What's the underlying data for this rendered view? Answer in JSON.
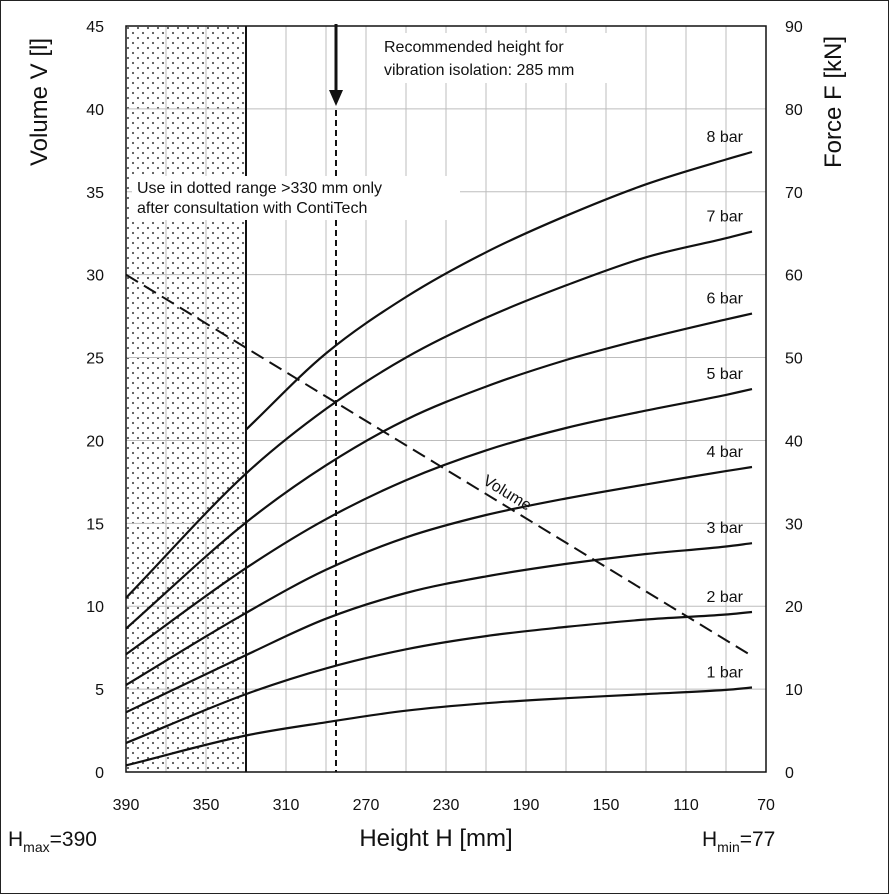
{
  "chart_data": {
    "type": "line",
    "xlabel": "Height H [mm]",
    "ylabel_left": "Volume V [l]",
    "ylabel_right": "Force F [kN]",
    "x_range": [
      390,
      70
    ],
    "x_reversed": true,
    "x_ticks": [
      "390",
      "350",
      "310",
      "270",
      "230",
      "190",
      "150",
      "110",
      "70"
    ],
    "y_left_range": [
      0,
      45
    ],
    "y_left_ticks": [
      "0",
      "5",
      "10",
      "15",
      "20",
      "25",
      "30",
      "35",
      "40",
      "45"
    ],
    "y_right_range": [
      0,
      90
    ],
    "y_right_ticks": [
      "0",
      "10",
      "20",
      "30",
      "40",
      "50",
      "60",
      "70",
      "80",
      "90"
    ],
    "grid": true,
    "h_max": {
      "prefix": "H",
      "sub": "max",
      "value": "=390"
    },
    "h_min": {
      "prefix": "H",
      "sub": "min",
      "value": "=77"
    },
    "dotted_range_mm": [
      390,
      330
    ],
    "recommended_height_mm": 285,
    "annotation_recommended": [
      "Recommended height for",
      "vibration isolation: 285 mm"
    ],
    "annotation_dotted": [
      "Use in dotted range >330 mm only",
      "after consultation with ContiTech"
    ],
    "series": [
      {
        "name": "1 bar",
        "axis": "force",
        "x": [
          390,
          330,
          290,
          250,
          210,
          170,
          130,
          90,
          77
        ],
        "y": [
          0.8,
          4.4,
          6.0,
          7.4,
          8.3,
          8.9,
          9.4,
          9.9,
          10.2
        ]
      },
      {
        "name": "2 bar",
        "axis": "force",
        "x": [
          390,
          330,
          290,
          250,
          210,
          170,
          130,
          90,
          77
        ],
        "y": [
          3.5,
          9.4,
          12.5,
          14.8,
          16.4,
          17.5,
          18.4,
          19.0,
          19.3
        ]
      },
      {
        "name": "3 bar",
        "axis": "force",
        "x": [
          390,
          330,
          290,
          250,
          210,
          170,
          130,
          90,
          77
        ],
        "y": [
          7.2,
          14.1,
          18.5,
          21.6,
          23.6,
          25.1,
          26.3,
          27.2,
          27.6
        ]
      },
      {
        "name": "4 bar",
        "axis": "force",
        "x": [
          390,
          330,
          290,
          250,
          210,
          170,
          130,
          90,
          77
        ],
        "y": [
          10.5,
          19.2,
          24.4,
          28.3,
          31.0,
          33.0,
          34.7,
          36.3,
          36.8
        ]
      },
      {
        "name": "5 bar",
        "axis": "force",
        "x": [
          390,
          330,
          290,
          250,
          210,
          170,
          130,
          90,
          77
        ],
        "y": [
          14.2,
          24.6,
          30.5,
          35.2,
          38.8,
          41.5,
          43.6,
          45.5,
          46.2
        ]
      },
      {
        "name": "6 bar",
        "axis": "force",
        "x": [
          390,
          330,
          290,
          250,
          210,
          170,
          130,
          90,
          77
        ],
        "y": [
          17.3,
          30.1,
          37.0,
          42.5,
          46.5,
          49.7,
          52.3,
          54.6,
          55.3
        ]
      },
      {
        "name": "7 bar",
        "axis": "force",
        "x": [
          390,
          330,
          290,
          250,
          210,
          170,
          130,
          90,
          77
        ],
        "y": [
          21.0,
          36.0,
          43.8,
          50.0,
          54.8,
          58.7,
          62.1,
          64.4,
          65.2
        ]
      },
      {
        "name": "8 bar",
        "axis": "force",
        "x": [
          330,
          290,
          250,
          210,
          170,
          130,
          90,
          77
        ],
        "y": [
          41.3,
          50.5,
          57.3,
          62.7,
          67.1,
          70.9,
          73.9,
          74.8
        ]
      },
      {
        "name": "Volume",
        "axis": "volume",
        "dashed": true,
        "x": [
          390,
          77
        ],
        "y": [
          30.0,
          7.0
        ]
      }
    ]
  }
}
